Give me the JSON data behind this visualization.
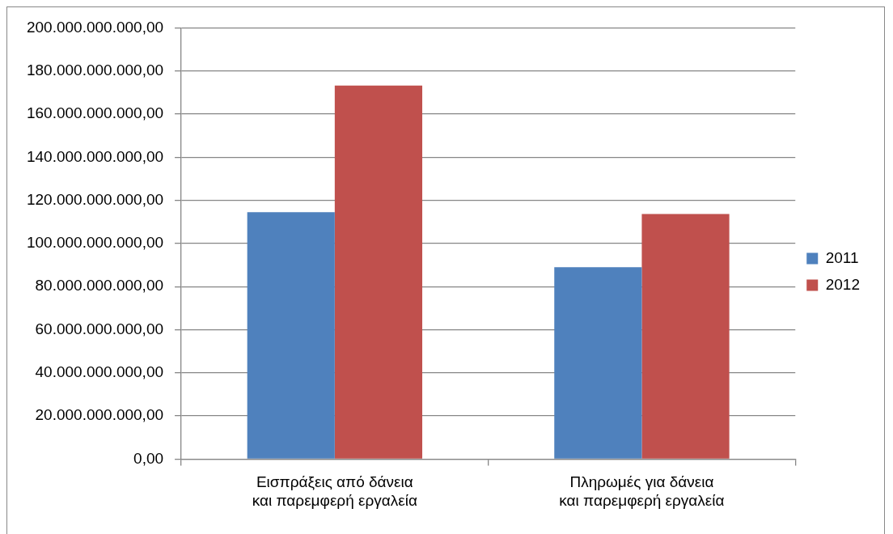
{
  "chart_data": {
    "type": "bar",
    "categories": [
      "Εισπράξεις από δάνεια και παρεμφερή εργαλεία",
      "Πληρωμές για δάνεια και παρεμφερή εργαλεία"
    ],
    "series": [
      {
        "name": "2011",
        "color": "#4f81bd",
        "values": [
          114500000000,
          89000000000
        ]
      },
      {
        "name": "2012",
        "color": "#c0504d",
        "values": [
          173200000000,
          113700000000
        ]
      }
    ],
    "ylim": [
      0,
      200000000000
    ],
    "yticks": [
      {
        "value": 0,
        "label": "0,00"
      },
      {
        "value": 20000000000,
        "label": "20.000.000.000,00"
      },
      {
        "value": 40000000000,
        "label": "40.000.000.000,00"
      },
      {
        "value": 60000000000,
        "label": "60.000.000.000,00"
      },
      {
        "value": 80000000000,
        "label": "80.000.000.000,00"
      },
      {
        "value": 100000000000,
        "label": "100.000.000.000,00"
      },
      {
        "value": 120000000000,
        "label": "120.000.000.000,00"
      },
      {
        "value": 140000000000,
        "label": "140.000.000.000,00"
      },
      {
        "value": 160000000000,
        "label": "160.000.000.000,00"
      },
      {
        "value": 180000000000,
        "label": "180.000.000.000,00"
      },
      {
        "value": 200000000000,
        "label": "200.000.000.000,00"
      }
    ],
    "grid": "y",
    "legend": "right"
  }
}
